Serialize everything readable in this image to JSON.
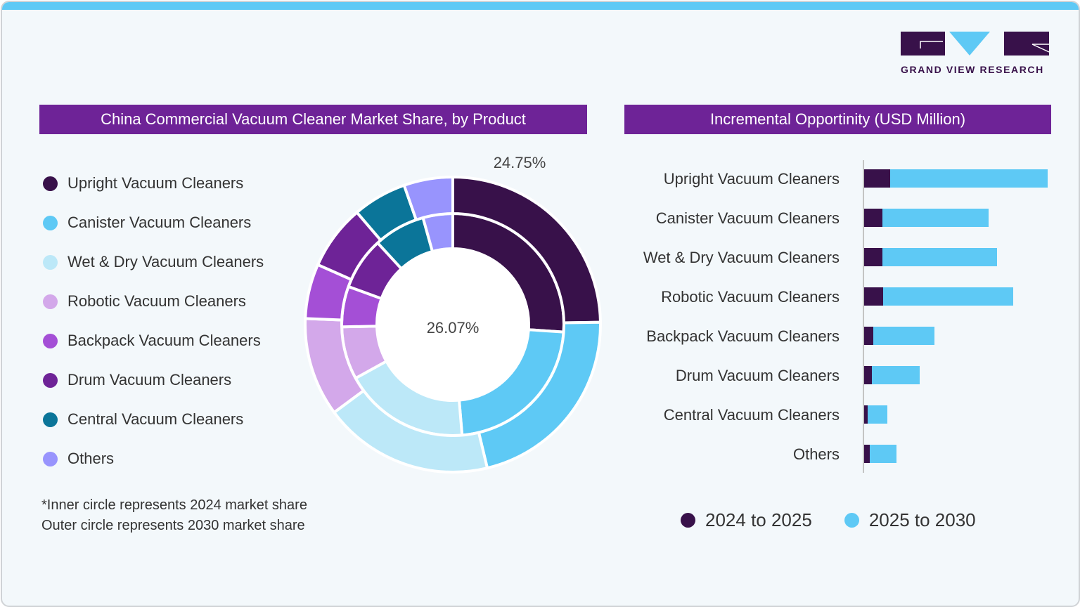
{
  "brand": {
    "name": "GRAND VIEW RESEARCH",
    "accent": "#5ec9f5",
    "dark": "#38114a",
    "title_bg": "#6e2397"
  },
  "left_panel": {
    "title": "China Commercial Vacuum Cleaner Market Share, by Product",
    "note_line1": "*Inner circle represents 2024 market share",
    "note_line2": "Outer circle represents 2030 market share"
  },
  "right_panel": {
    "title": "Incremental Opportinity (USD Million)"
  },
  "chart_data": [
    {
      "type": "pie",
      "title": "China Commercial Vacuum Cleaner Market Share, by Product",
      "categories": [
        "Upright Vacuum Cleaners",
        "Canister Vacuum Cleaners",
        "Wet & Dry Vacuum Cleaners",
        "Robotic Vacuum Cleaners",
        "Backpack Vacuum Cleaners",
        "Drum Vacuum Cleaners",
        "Central Vacuum Cleaners",
        "Others"
      ],
      "colors": [
        "#38114a",
        "#5ec9f5",
        "#bce8f8",
        "#d3a8ea",
        "#a44fd6",
        "#6e2397",
        "#0b7599",
        "#9894fd"
      ],
      "series": [
        {
          "name": "2024 (inner)",
          "values": [
            26.07,
            22.6,
            18.3,
            7.7,
            5.9,
            7.6,
            7.5,
            4.33
          ]
        },
        {
          "name": "2030 (outer)",
          "values": [
            24.75,
            21.5,
            18.6,
            10.8,
            6.0,
            7.1,
            5.9,
            5.35
          ]
        }
      ],
      "annotations": [
        "26.07%",
        "24.75%"
      ],
      "legend_position": "left"
    },
    {
      "type": "bar",
      "orientation": "horizontal",
      "stacked": true,
      "title": "Incremental Opportinity (USD Million)",
      "categories": [
        "Upright Vacuum Cleaners",
        "Canister Vacuum Cleaners",
        "Wet & Dry Vacuum Cleaners",
        "Robotic Vacuum Cleaners",
        "Backpack Vacuum Cleaners",
        "Drum Vacuum Cleaners",
        "Central Vacuum Cleaners",
        "Others"
      ],
      "series": [
        {
          "name": "2024 to 2025",
          "color": "#38114a",
          "values": [
            37,
            26,
            26,
            27,
            13,
            11,
            5,
            8
          ]
        },
        {
          "name": "2025 to 2030",
          "color": "#5ec9f5",
          "values": [
            224,
            151,
            163,
            185,
            87,
            68,
            28,
            38
          ]
        }
      ],
      "xlim": [
        0,
        270
      ],
      "grid": false,
      "legend_position": "bottom"
    }
  ]
}
